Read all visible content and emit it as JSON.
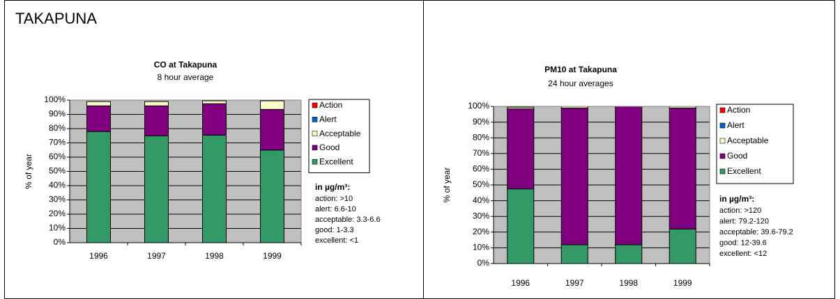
{
  "heading": "TAKAPUNA",
  "chart_data": [
    {
      "type": "stacked_bar",
      "title": "CO at Takapuna",
      "subtitle": "8 hour average",
      "y_label": "% of year",
      "categories": [
        "1996",
        "1997",
        "1998",
        "1999"
      ],
      "series": [
        {
          "name": "Action",
          "color": "#ff0000",
          "values": [
            0,
            0,
            0,
            0
          ]
        },
        {
          "name": "Alert",
          "color": "#0066cc",
          "values": [
            0,
            0,
            0,
            0
          ]
        },
        {
          "name": "Acceptable",
          "color": "#ffffcc",
          "values": [
            3,
            3,
            2,
            6
          ]
        },
        {
          "name": "Good",
          "color": "#800080",
          "values": [
            18,
            21,
            22,
            28.5
          ]
        },
        {
          "name": "Excellent",
          "color": "#339966",
          "values": [
            78,
            75,
            75.5,
            65
          ]
        }
      ],
      "ylim": [
        0,
        100
      ],
      "yticks": [
        {
          "value": 0,
          "label": "0%"
        },
        {
          "value": 10,
          "label": "10%"
        },
        {
          "value": 20,
          "label": "20%"
        },
        {
          "value": 30,
          "label": "30%"
        },
        {
          "value": 40,
          "label": "40%"
        },
        {
          "value": 50,
          "label": "50%"
        },
        {
          "value": 60,
          "label": "60%"
        },
        {
          "value": 70,
          "label": "70%"
        },
        {
          "value": 80,
          "label": "80%"
        },
        {
          "value": 90,
          "label": "90%"
        },
        {
          "value": 100,
          "label": "100%"
        }
      ],
      "grid": true,
      "legend": "right",
      "notes_title": "in µg/m³:",
      "notes": [
        "action:  >10",
        "alert:  6.6-10",
        "acceptable:  3.3-6.6",
        "good:  1-3.3",
        "excellent:  <1"
      ]
    },
    {
      "type": "stacked_bar",
      "title": "PM10 at Takapuna",
      "subtitle": "24 hour averages",
      "y_label": "% of year",
      "categories": [
        "1996",
        "1997",
        "1998",
        "1999"
      ],
      "series": [
        {
          "name": "Action",
          "color": "#ff0000",
          "values": [
            0,
            0,
            0,
            0
          ]
        },
        {
          "name": "Alert",
          "color": "#0066cc",
          "values": [
            0,
            0,
            0,
            0
          ]
        },
        {
          "name": "Acceptable",
          "color": "#ffffcc",
          "values": [
            1,
            1,
            0,
            1
          ]
        },
        {
          "name": "Good",
          "color": "#800080",
          "values": [
            51,
            87,
            88,
            77
          ]
        },
        {
          "name": "Excellent",
          "color": "#339966",
          "values": [
            47.5,
            12,
            12,
            22
          ]
        }
      ],
      "ylim": [
        0,
        100
      ],
      "yticks": [
        {
          "value": 0,
          "label": "0%"
        },
        {
          "value": 10,
          "label": "10%"
        },
        {
          "value": 20,
          "label": "20%"
        },
        {
          "value": 30,
          "label": "30%"
        },
        {
          "value": 40,
          "label": "40%"
        },
        {
          "value": 50,
          "label": "50%"
        },
        {
          "value": 60,
          "label": "60%"
        },
        {
          "value": 70,
          "label": "70%"
        },
        {
          "value": 80,
          "label": "80%"
        },
        {
          "value": 90,
          "label": "90%"
        },
        {
          "value": 100,
          "label": "100%"
        }
      ],
      "grid": true,
      "legend": "right",
      "notes_title": "in µg/m³:",
      "notes": [
        "action:  >120",
        "alert:  79.2-120",
        "acceptable:  39.6-79.2",
        "good:  12-39.6",
        "excellent:  <12"
      ]
    }
  ]
}
